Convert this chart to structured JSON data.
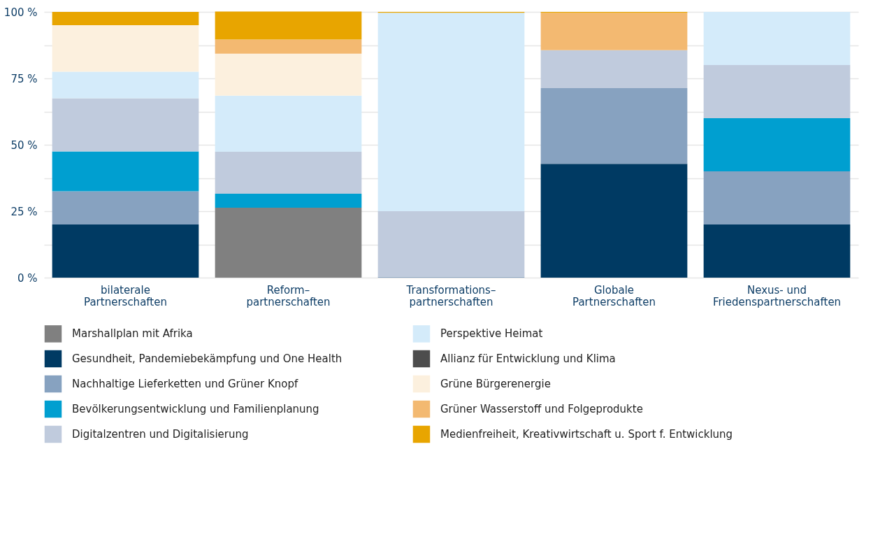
{
  "chart_data": {
    "type": "bar",
    "stacked": true,
    "categories": [
      "bilaterale\nPartnerschaften",
      "Reform–\npartnerschaften",
      "Transformations–\npartnerschaften",
      "Globale\nPartnerschaften",
      "Nexus- und\nFriedenspartnerschaften"
    ],
    "series": [
      {
        "name": "Marshallplan mit Afrika",
        "color": "#808080",
        "values": [
          null,
          26.3,
          null,
          null,
          null
        ]
      },
      {
        "name": "Gesundheit, Pandemiebekämpfung und One Health",
        "color": "#003a63",
        "values": [
          20,
          null,
          null,
          42.8,
          20
        ]
      },
      {
        "name": "Nachhaltige Lieferketten und Grüner Knopf",
        "color": "#87a2c0",
        "values": [
          12.5,
          null,
          0.3,
          28.5,
          20
        ]
      },
      {
        "name": "Bevölkerungsentwicklung und Familienplanung",
        "color": "#009fd0",
        "values": [
          15,
          5.3,
          null,
          null,
          20
        ]
      },
      {
        "name": "Digitalzentren und Digitalisierung",
        "color": "#c0cbdd",
        "values": [
          20,
          15.8,
          24.7,
          14.3,
          20
        ]
      },
      {
        "name": "Perspektive Heimat",
        "color": "#d4ebfa",
        "values": [
          10,
          21.1,
          74.7,
          null,
          20
        ]
      },
      {
        "name": "Allianz für Entwicklung und Klima",
        "color": "#4d4d4d",
        "values": [
          null,
          null,
          null,
          null,
          null
        ]
      },
      {
        "name": "Grüne Bürgerenergie",
        "color": "#fcf0de",
        "values": [
          17.5,
          15.8,
          null,
          null,
          null
        ]
      },
      {
        "name": "Grüner Wasserstoff und Folgeprodukte",
        "color": "#f3b971",
        "values": [
          null,
          5.3,
          null,
          14.1,
          null
        ]
      },
      {
        "name": "Medienfreiheit, Kreativwirtschaft u. Sport f. Entwicklung",
        "color": "#e8a500",
        "values": [
          5,
          10.5,
          0.3,
          0.3,
          null
        ]
      }
    ],
    "ylim": [
      0,
      100
    ],
    "yticks": [
      {
        "value": 0,
        "label": "0 %"
      },
      {
        "value": 12.5,
        "label": null
      },
      {
        "value": 25,
        "label": "25 %"
      },
      {
        "value": 37.5,
        "label": null
      },
      {
        "value": 50,
        "label": "50 %"
      },
      {
        "value": 62.5,
        "label": null
      },
      {
        "value": 75,
        "label": "75 %"
      },
      {
        "value": 87.5,
        "label": null
      },
      {
        "value": 100,
        "label": "100 %"
      }
    ],
    "grid": "y",
    "legend": "bottom"
  }
}
